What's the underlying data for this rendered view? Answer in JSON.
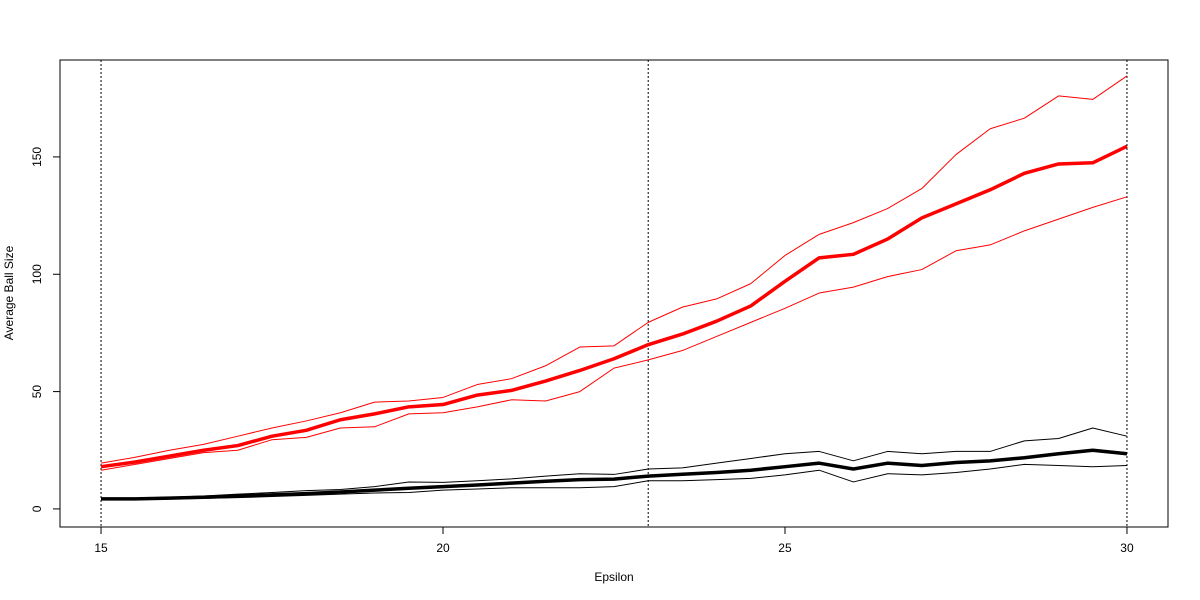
{
  "chart_data": {
    "type": "line",
    "x_label": "Epsilon",
    "y_label": "Average Ball Size",
    "x": [
      15,
      15.5,
      16,
      16.5,
      17,
      17.5,
      18,
      18.5,
      19,
      19.5,
      20,
      20.5,
      21,
      21.5,
      22,
      22.5,
      23,
      23.5,
      24,
      24.5,
      25,
      25.5,
      26,
      26.5,
      27,
      27.5,
      28,
      28.5,
      29,
      29.5,
      30
    ],
    "series": [
      {
        "color": "#ff0000",
        "line_width": 1,
        "values": [
          19.5,
          22,
          25,
          27.5,
          31,
          34.5,
          37.5,
          41,
          45.5,
          46,
          47.5,
          53,
          55.5,
          61,
          69,
          69.5,
          79.5,
          86,
          89.5,
          96,
          108,
          117,
          122,
          128,
          136.5,
          151,
          162,
          166.5,
          176,
          174.5,
          184.5
        ]
      },
      {
        "color": "#ff0000",
        "line_width": 1,
        "values": [
          16.5,
          19,
          21.5,
          24,
          25,
          29.5,
          30.5,
          34.5,
          35,
          40.5,
          41,
          43.5,
          46.5,
          46,
          50,
          60,
          63.5,
          67.5,
          73.5,
          79.5,
          85.5,
          92,
          94.5,
          99,
          102,
          110,
          112.5,
          118.5,
          123.5,
          128.5,
          133
        ]
      },
      {
        "color": "#ff0000",
        "line_width": 3.5,
        "values": [
          18,
          20,
          22.5,
          25,
          27,
          31,
          33.5,
          38,
          40.5,
          43.5,
          44.5,
          48.5,
          50.5,
          54.5,
          59,
          64,
          70,
          74.5,
          80,
          86.5,
          97,
          107,
          108.5,
          115,
          124,
          130,
          136,
          143,
          147,
          147.5,
          154.5
        ]
      },
      {
        "color": "#000000",
        "line_width": 1,
        "values": [
          4.5,
          4.6,
          5,
          5.5,
          6.3,
          7,
          7.8,
          8.3,
          9.5,
          11.5,
          11.3,
          12,
          12.8,
          14,
          15,
          14.7,
          17,
          17.5,
          19.5,
          21.5,
          23.5,
          24.5,
          20.5,
          24.5,
          23.5,
          24.5,
          24.5,
          29,
          30,
          34.5,
          31
        ]
      },
      {
        "color": "#000000",
        "line_width": 1,
        "values": [
          4.1,
          4.1,
          4.3,
          4.5,
          4.8,
          5.3,
          5.8,
          6.3,
          6.8,
          7,
          8,
          8.5,
          9,
          9,
          9,
          9.5,
          12,
          12,
          12.5,
          13,
          14.5,
          16.5,
          11.5,
          15,
          14.5,
          15.5,
          17,
          19,
          18.5,
          18,
          18.5
        ]
      },
      {
        "color": "#000000",
        "line_width": 3.5,
        "values": [
          4.3,
          4.3,
          4.6,
          5,
          5.5,
          6,
          6.5,
          7.2,
          8,
          8.8,
          9.5,
          10.2,
          11,
          11.8,
          12.5,
          12.7,
          14,
          14.8,
          15.5,
          16.5,
          18,
          19.5,
          17,
          19.5,
          18.5,
          19.8,
          20.5,
          21.8,
          23.5,
          25,
          23.5
        ]
      }
    ],
    "vlines": [
      15,
      23,
      30
    ],
    "xlim": [
      14.4,
      30.6
    ],
    "xticks": [
      15,
      20,
      25,
      30
    ],
    "ylim": [
      -7.7,
      191.3
    ],
    "yticks": [
      0,
      50,
      100,
      150
    ]
  }
}
